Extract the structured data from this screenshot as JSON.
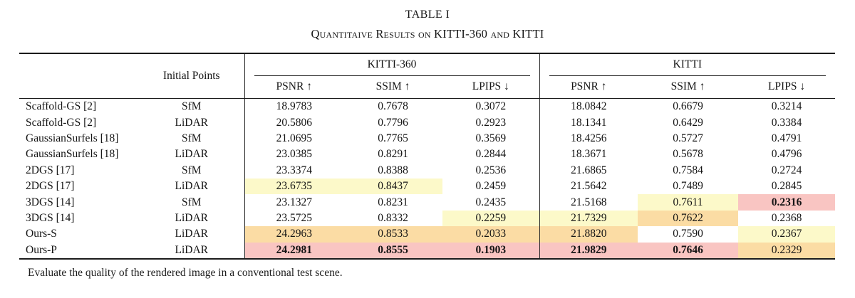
{
  "title": "TABLE I",
  "subtitle": "Quantitaive Results on KITTI-360 and KITTI",
  "caption": "Evaluate the quality of the rendered image in a conventional test scene.",
  "colors": {
    "best_highlight": "#f9c5c2",
    "second_highlight": "#fbdca4",
    "third_highlight": "#fcf9c9",
    "rule": "#1b1b1b"
  },
  "table": {
    "initial_points_header": "Initial Points",
    "groups": [
      "KITTI-360",
      "KITTI"
    ],
    "metrics": [
      "PSNR ↑",
      "SSIM ↑",
      "LPIPS ↓"
    ],
    "rows": [
      {
        "method": "Scaffold-GS [2]",
        "initial_points": "SfM",
        "kitti360": [
          "18.9783",
          "0.7678",
          "0.3072"
        ],
        "kitti": [
          "18.0842",
          "0.6679",
          "0.3214"
        ],
        "hl360": [
          null,
          null,
          null
        ],
        "hlk": [
          null,
          null,
          null
        ]
      },
      {
        "method": "Scaffold-GS [2]",
        "initial_points": "LiDAR",
        "kitti360": [
          "20.5806",
          "0.7796",
          "0.2923"
        ],
        "kitti": [
          "18.1341",
          "0.6429",
          "0.3384"
        ],
        "hl360": [
          null,
          null,
          null
        ],
        "hlk": [
          null,
          null,
          null
        ]
      },
      {
        "method": "GaussianSurfels [18]",
        "initial_points": "SfM",
        "kitti360": [
          "21.0695",
          "0.7765",
          "0.3569"
        ],
        "kitti": [
          "18.4256",
          "0.5727",
          "0.4791"
        ],
        "hl360": [
          null,
          null,
          null
        ],
        "hlk": [
          null,
          null,
          null
        ]
      },
      {
        "method": "GaussianSurfels [18]",
        "initial_points": "LiDAR",
        "kitti360": [
          "23.0385",
          "0.8291",
          "0.2844"
        ],
        "kitti": [
          "18.3671",
          "0.5678",
          "0.4796"
        ],
        "hl360": [
          null,
          null,
          null
        ],
        "hlk": [
          null,
          null,
          null
        ]
      },
      {
        "method": "2DGS [17]",
        "initial_points": "SfM",
        "kitti360": [
          "23.3374",
          "0.8388",
          "0.2536"
        ],
        "kitti": [
          "21.6865",
          "0.7584",
          "0.2724"
        ],
        "hl360": [
          null,
          null,
          null
        ],
        "hlk": [
          null,
          null,
          null
        ]
      },
      {
        "method": "2DGS [17]",
        "initial_points": "LiDAR",
        "kitti360": [
          "23.6735",
          "0.8437",
          "0.2459"
        ],
        "kitti": [
          "21.5642",
          "0.7489",
          "0.2845"
        ],
        "hl360": [
          "t",
          "t",
          null
        ],
        "hlk": [
          null,
          null,
          null
        ]
      },
      {
        "method": "3DGS [14]",
        "initial_points": "SfM",
        "kitti360": [
          "23.1327",
          "0.8231",
          "0.2435"
        ],
        "kitti": [
          "21.5168",
          "0.7611",
          "0.2316"
        ],
        "hl360": [
          null,
          null,
          null
        ],
        "hlk": [
          null,
          "t",
          "b"
        ]
      },
      {
        "method": "3DGS [14]",
        "initial_points": "LiDAR",
        "kitti360": [
          "23.5725",
          "0.8332",
          "0.2259"
        ],
        "kitti": [
          "21.7329",
          "0.7622",
          "0.2368"
        ],
        "hl360": [
          null,
          null,
          "t"
        ],
        "hlk": [
          "t",
          "s",
          null
        ]
      },
      {
        "method": "Ours-S",
        "initial_points": "LiDAR",
        "kitti360": [
          "24.2963",
          "0.8533",
          "0.2033"
        ],
        "kitti": [
          "21.8820",
          "0.7590",
          "0.2367"
        ],
        "hl360": [
          "s",
          "s",
          "s"
        ],
        "hlk": [
          "s",
          null,
          "t"
        ]
      },
      {
        "method": "Ours-P",
        "initial_points": "LiDAR",
        "kitti360": [
          "24.2981",
          "0.8555",
          "0.1903"
        ],
        "kitti": [
          "21.9829",
          "0.7646",
          "0.2329"
        ],
        "hl360": [
          "b",
          "b",
          "b"
        ],
        "hlk": [
          "b",
          "b",
          "s"
        ]
      }
    ]
  }
}
